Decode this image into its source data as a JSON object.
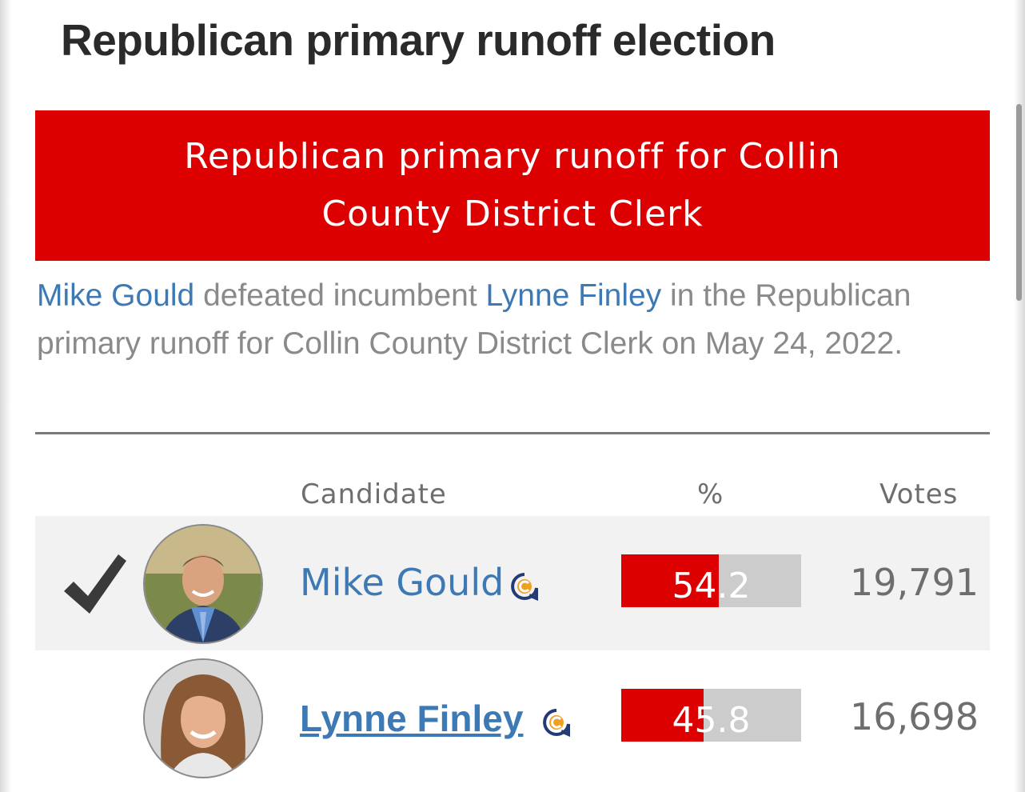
{
  "page": {
    "title": "Republican primary runoff election"
  },
  "race": {
    "banner": "Republican primary runoff for Collin County District Clerk",
    "summary": {
      "winner": "Mike Gould",
      "text_1": " defeated incumbent ",
      "incumbent": "Lynne Finley",
      "text_2": " in the Republican primary runoff for Collin County District Clerk on May 24, 2022."
    }
  },
  "table": {
    "headers": {
      "candidate": "Candidate",
      "percent": "%",
      "votes": "Votes"
    },
    "rows": [
      {
        "name": "Mike Gould",
        "percent": "54.2",
        "percent_value": 54.2,
        "votes": "19,791",
        "winner": true,
        "party_icon": "party-c-icon"
      },
      {
        "name": "Lynne Finley",
        "percent": "45.8",
        "percent_value": 45.8,
        "votes": "16,698",
        "winner": false,
        "party_icon": "party-c-icon"
      }
    ]
  },
  "colors": {
    "accent_red": "#dd0000",
    "link_blue": "#3d7ab5",
    "bar_gray": "#cccccc"
  },
  "icons": {
    "winner_mark": "checkmark-icon",
    "party": "party-c-icon"
  }
}
